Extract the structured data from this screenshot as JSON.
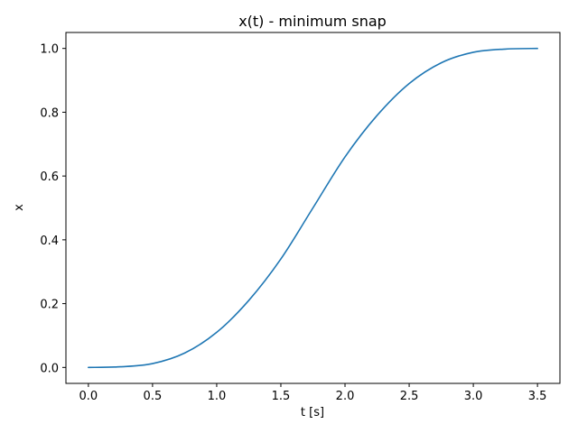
{
  "chart_data": {
    "type": "line",
    "title": "x(t) - minimum snap",
    "xlabel": "t [s]",
    "ylabel": "x",
    "xlim": [
      -0.175,
      3.675
    ],
    "ylim": [
      -0.05,
      1.05
    ],
    "grid": false,
    "x_ticks": [
      0.0,
      0.5,
      1.0,
      1.5,
      2.0,
      2.5,
      3.0,
      3.5
    ],
    "x_tick_labels": [
      "0.0",
      "0.5",
      "1.0",
      "1.5",
      "2.0",
      "2.5",
      "3.0",
      "3.5"
    ],
    "y_ticks": [
      0.0,
      0.2,
      0.4,
      0.6,
      0.8,
      1.0
    ],
    "y_tick_labels": [
      "0.0",
      "0.2",
      "0.4",
      "0.6",
      "0.8",
      "1.0"
    ],
    "series": [
      {
        "name": "x(t)",
        "color": "#1f77b4",
        "x": [
          0.0,
          0.25,
          0.5,
          0.75,
          1.0,
          1.25,
          1.5,
          1.75,
          2.0,
          2.25,
          2.5,
          2.75,
          3.0,
          3.25,
          3.5
        ],
        "values": [
          0.0,
          0.002,
          0.012,
          0.045,
          0.11,
          0.21,
          0.34,
          0.5,
          0.66,
          0.79,
          0.89,
          0.955,
          0.988,
          0.998,
          1.0
        ]
      }
    ]
  }
}
